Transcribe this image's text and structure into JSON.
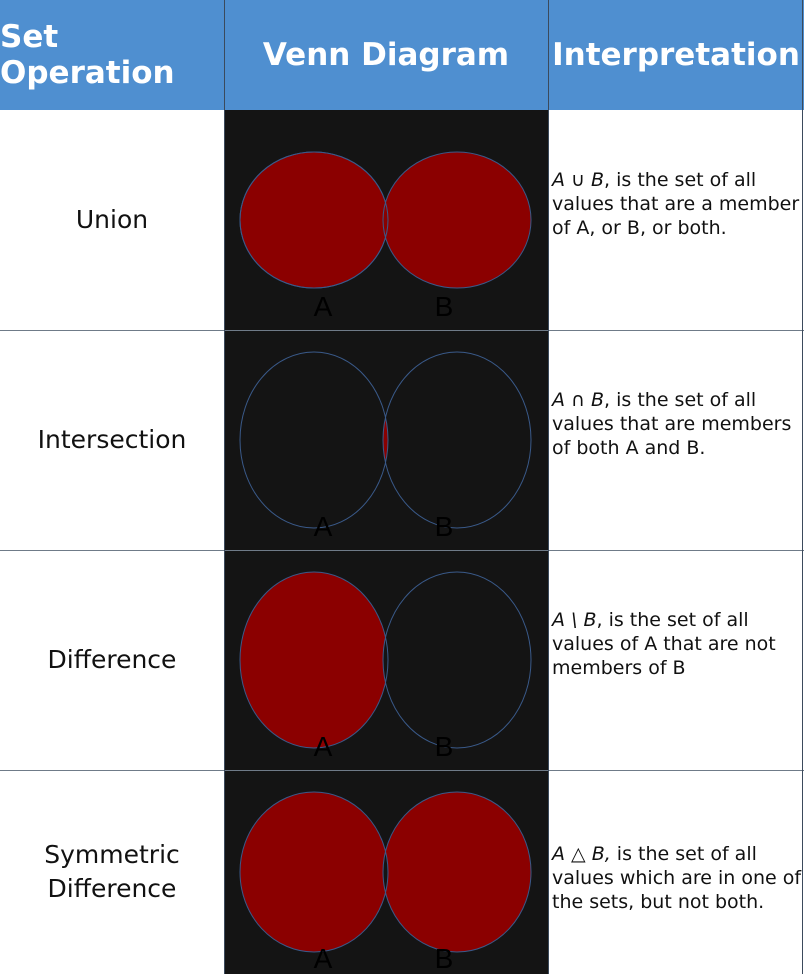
{
  "header": {
    "col1": "Set Operation",
    "col2": "Venn Diagram",
    "col3": "Interpretation"
  },
  "colors": {
    "header_bg": "#4f8fd0",
    "fill": "#8b0000",
    "venn_bg": "#141414",
    "circle_stroke": "#3a5a8a"
  },
  "rows": [
    {
      "operation": "Union",
      "label_a": "A",
      "label_b": "B",
      "interp_symbol": "A ∪ B",
      "interp_text": ", is the set of all values that are a member of A, or B, or both."
    },
    {
      "operation": "Intersection",
      "label_a": "A",
      "label_b": "B",
      "interp_symbol": "A ∩ B",
      "interp_text": ", is the set of all values that are members of both A and B."
    },
    {
      "operation": "Difference",
      "label_a": "A",
      "label_b": "B",
      "interp_symbol": "A \\ B",
      "interp_text": ", is the set of all values of A that are not members of B"
    },
    {
      "operation": "Symmetric Difference",
      "operation_line1": "Symmetric",
      "operation_line2": "Difference",
      "label_a": "A",
      "label_b": "B",
      "interp_symbol": "A △ B,",
      "interp_text": " is the set of all values which are in one of the sets, but not both."
    }
  ]
}
